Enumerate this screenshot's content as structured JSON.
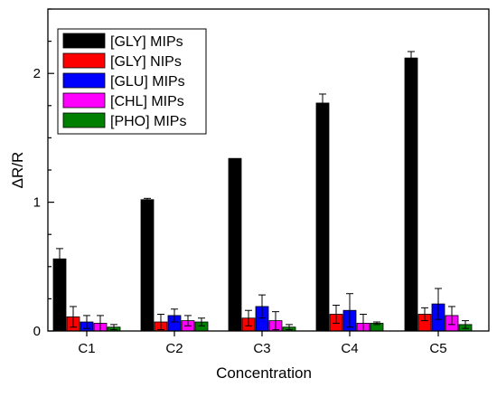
{
  "chart_data": {
    "type": "bar",
    "title": "",
    "xlabel": "Concentration",
    "ylabel": "ΔR/R",
    "ylim": [
      0,
      2.5
    ],
    "yticks": [
      0,
      1,
      2
    ],
    "categories": [
      "C1",
      "C2",
      "C3",
      "C4",
      "C5"
    ],
    "error_bars": true,
    "grid": false,
    "legend_position": "top-left",
    "series": [
      {
        "name": "[GLY] MIPs",
        "color": "#000000",
        "values": [
          0.56,
          1.02,
          1.34,
          1.77,
          2.12
        ],
        "errors": [
          0.08,
          0.01,
          0.0,
          0.07,
          0.05
        ]
      },
      {
        "name": "[GLY] NIPs",
        "color": "#ff0000",
        "values": [
          0.11,
          0.07,
          0.1,
          0.13,
          0.13
        ],
        "errors": [
          0.08,
          0.06,
          0.06,
          0.07,
          0.05
        ]
      },
      {
        "name": "[GLU] MIPs",
        "color": "#0000ff",
        "values": [
          0.07,
          0.12,
          0.19,
          0.16,
          0.21
        ],
        "errors": [
          0.05,
          0.05,
          0.09,
          0.13,
          0.12
        ]
      },
      {
        "name": "[CHL] MIPs",
        "color": "#ff00ff",
        "values": [
          0.06,
          0.08,
          0.08,
          0.06,
          0.12
        ],
        "errors": [
          0.06,
          0.04,
          0.07,
          0.07,
          0.07
        ]
      },
      {
        "name": "[PHO] MIPs",
        "color": "#008000",
        "values": [
          0.03,
          0.07,
          0.03,
          0.06,
          0.05
        ],
        "errors": [
          0.02,
          0.03,
          0.02,
          0.01,
          0.03
        ]
      }
    ]
  }
}
